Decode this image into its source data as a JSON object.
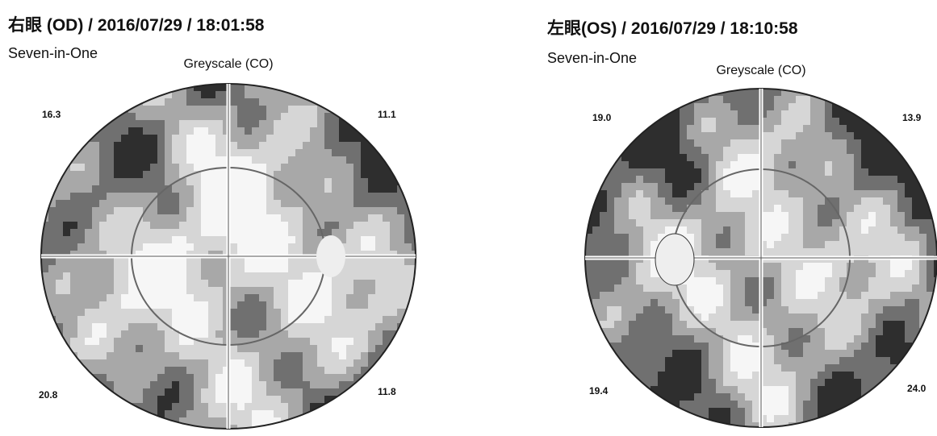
{
  "panels": [
    {
      "title": "右眼 (OD) / 2016/07/29 / 18:01:58",
      "subtitle": "Seven-in-One",
      "plot_label": "Greyscale (CO)",
      "quadrants": {
        "top_left": "16.3",
        "top_right": "11.1",
        "bottom_left": "20.8",
        "bottom_right": "11.8"
      }
    },
    {
      "title": "左眼(OS) / 2016/07/29 / 18:10:58",
      "subtitle": "Seven-in-One",
      "plot_label": "Greyscale (CO)",
      "quadrants": {
        "top_left": "19.0",
        "top_right": "13.9",
        "bottom_left": "19.4",
        "bottom_right": "24.0"
      }
    }
  ]
}
